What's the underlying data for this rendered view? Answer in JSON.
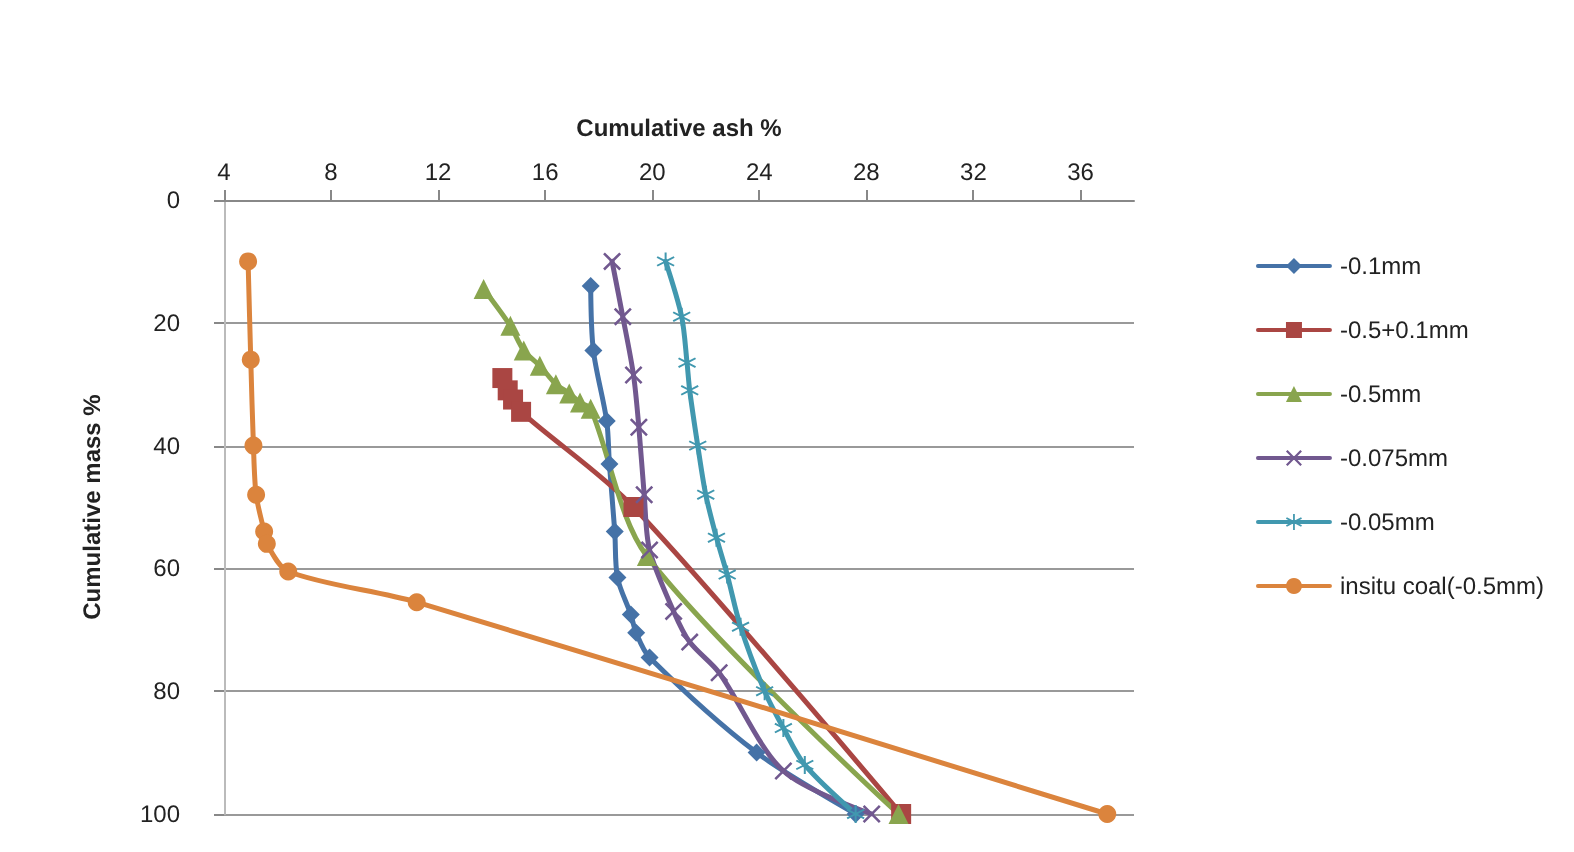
{
  "chart_data": {
    "type": "line",
    "xlabel": "Cumulative ash %",
    "ylabel": "Cumulative mass %",
    "xlim": [
      4,
      38
    ],
    "xticks": [
      4,
      8,
      12,
      16,
      20,
      24,
      28,
      32,
      36
    ],
    "ylim": [
      100,
      0
    ],
    "yticks": [
      0,
      20,
      40,
      60,
      80,
      100
    ],
    "grid": "y",
    "legend": "right",
    "series": [
      {
        "name": "-0.1mm",
        "color": "#4572a7",
        "marker": "diamond",
        "x": [
          17.7,
          17.8,
          18.3,
          18.4,
          18.6,
          18.7,
          19.2,
          19.4,
          19.9,
          23.9,
          27.6
        ],
        "values": [
          14,
          24.5,
          36,
          43,
          54,
          61.5,
          67.5,
          70.5,
          74.5,
          90,
          100
        ]
      },
      {
        "name": "-0.5+0.1mm",
        "color": "#aa4643",
        "marker": "square",
        "x": [
          14.4,
          14.6,
          14.8,
          15.1,
          19.3,
          29.3
        ],
        "values": [
          29,
          31,
          32.5,
          34.5,
          50,
          100
        ]
      },
      {
        "name": "-0.5mm",
        "color": "#89a54e",
        "marker": "triangle",
        "x": [
          13.7,
          14.7,
          15.2,
          15.8,
          16.4,
          16.9,
          17.3,
          17.7,
          19.8,
          29.2
        ],
        "values": [
          14.5,
          20.5,
          24.5,
          27,
          30,
          31.5,
          33,
          34,
          58,
          100
        ]
      },
      {
        "name": "-0.075mm",
        "color": "#71588f",
        "marker": "cross",
        "x": [
          18.5,
          18.9,
          19.3,
          19.5,
          19.7,
          19.9,
          20.8,
          21.4,
          22.5,
          24.9,
          28.2
        ],
        "values": [
          10,
          19,
          28.5,
          37,
          48,
          57,
          67,
          72,
          77,
          93,
          100
        ]
      },
      {
        "name": "-0.05mm",
        "color": "#4198af",
        "marker": "star",
        "x": [
          20.5,
          21.1,
          21.3,
          21.4,
          21.7,
          22,
          22.4,
          22.8,
          23.3,
          24.2,
          24.9,
          25.7,
          27.6
        ],
        "values": [
          10,
          19,
          26.5,
          31,
          40,
          48,
          55,
          61,
          69.5,
          80,
          86,
          92,
          100
        ]
      },
      {
        "name": "insitu coal(-0.5mm)",
        "color": "#db843d",
        "marker": "circle",
        "x": [
          4.9,
          5,
          5.1,
          5.2,
          5.5,
          5.6,
          6.4,
          11.2,
          37
        ],
        "values": [
          10,
          26,
          40,
          48,
          54,
          56,
          60.5,
          65.5,
          100
        ]
      }
    ]
  }
}
